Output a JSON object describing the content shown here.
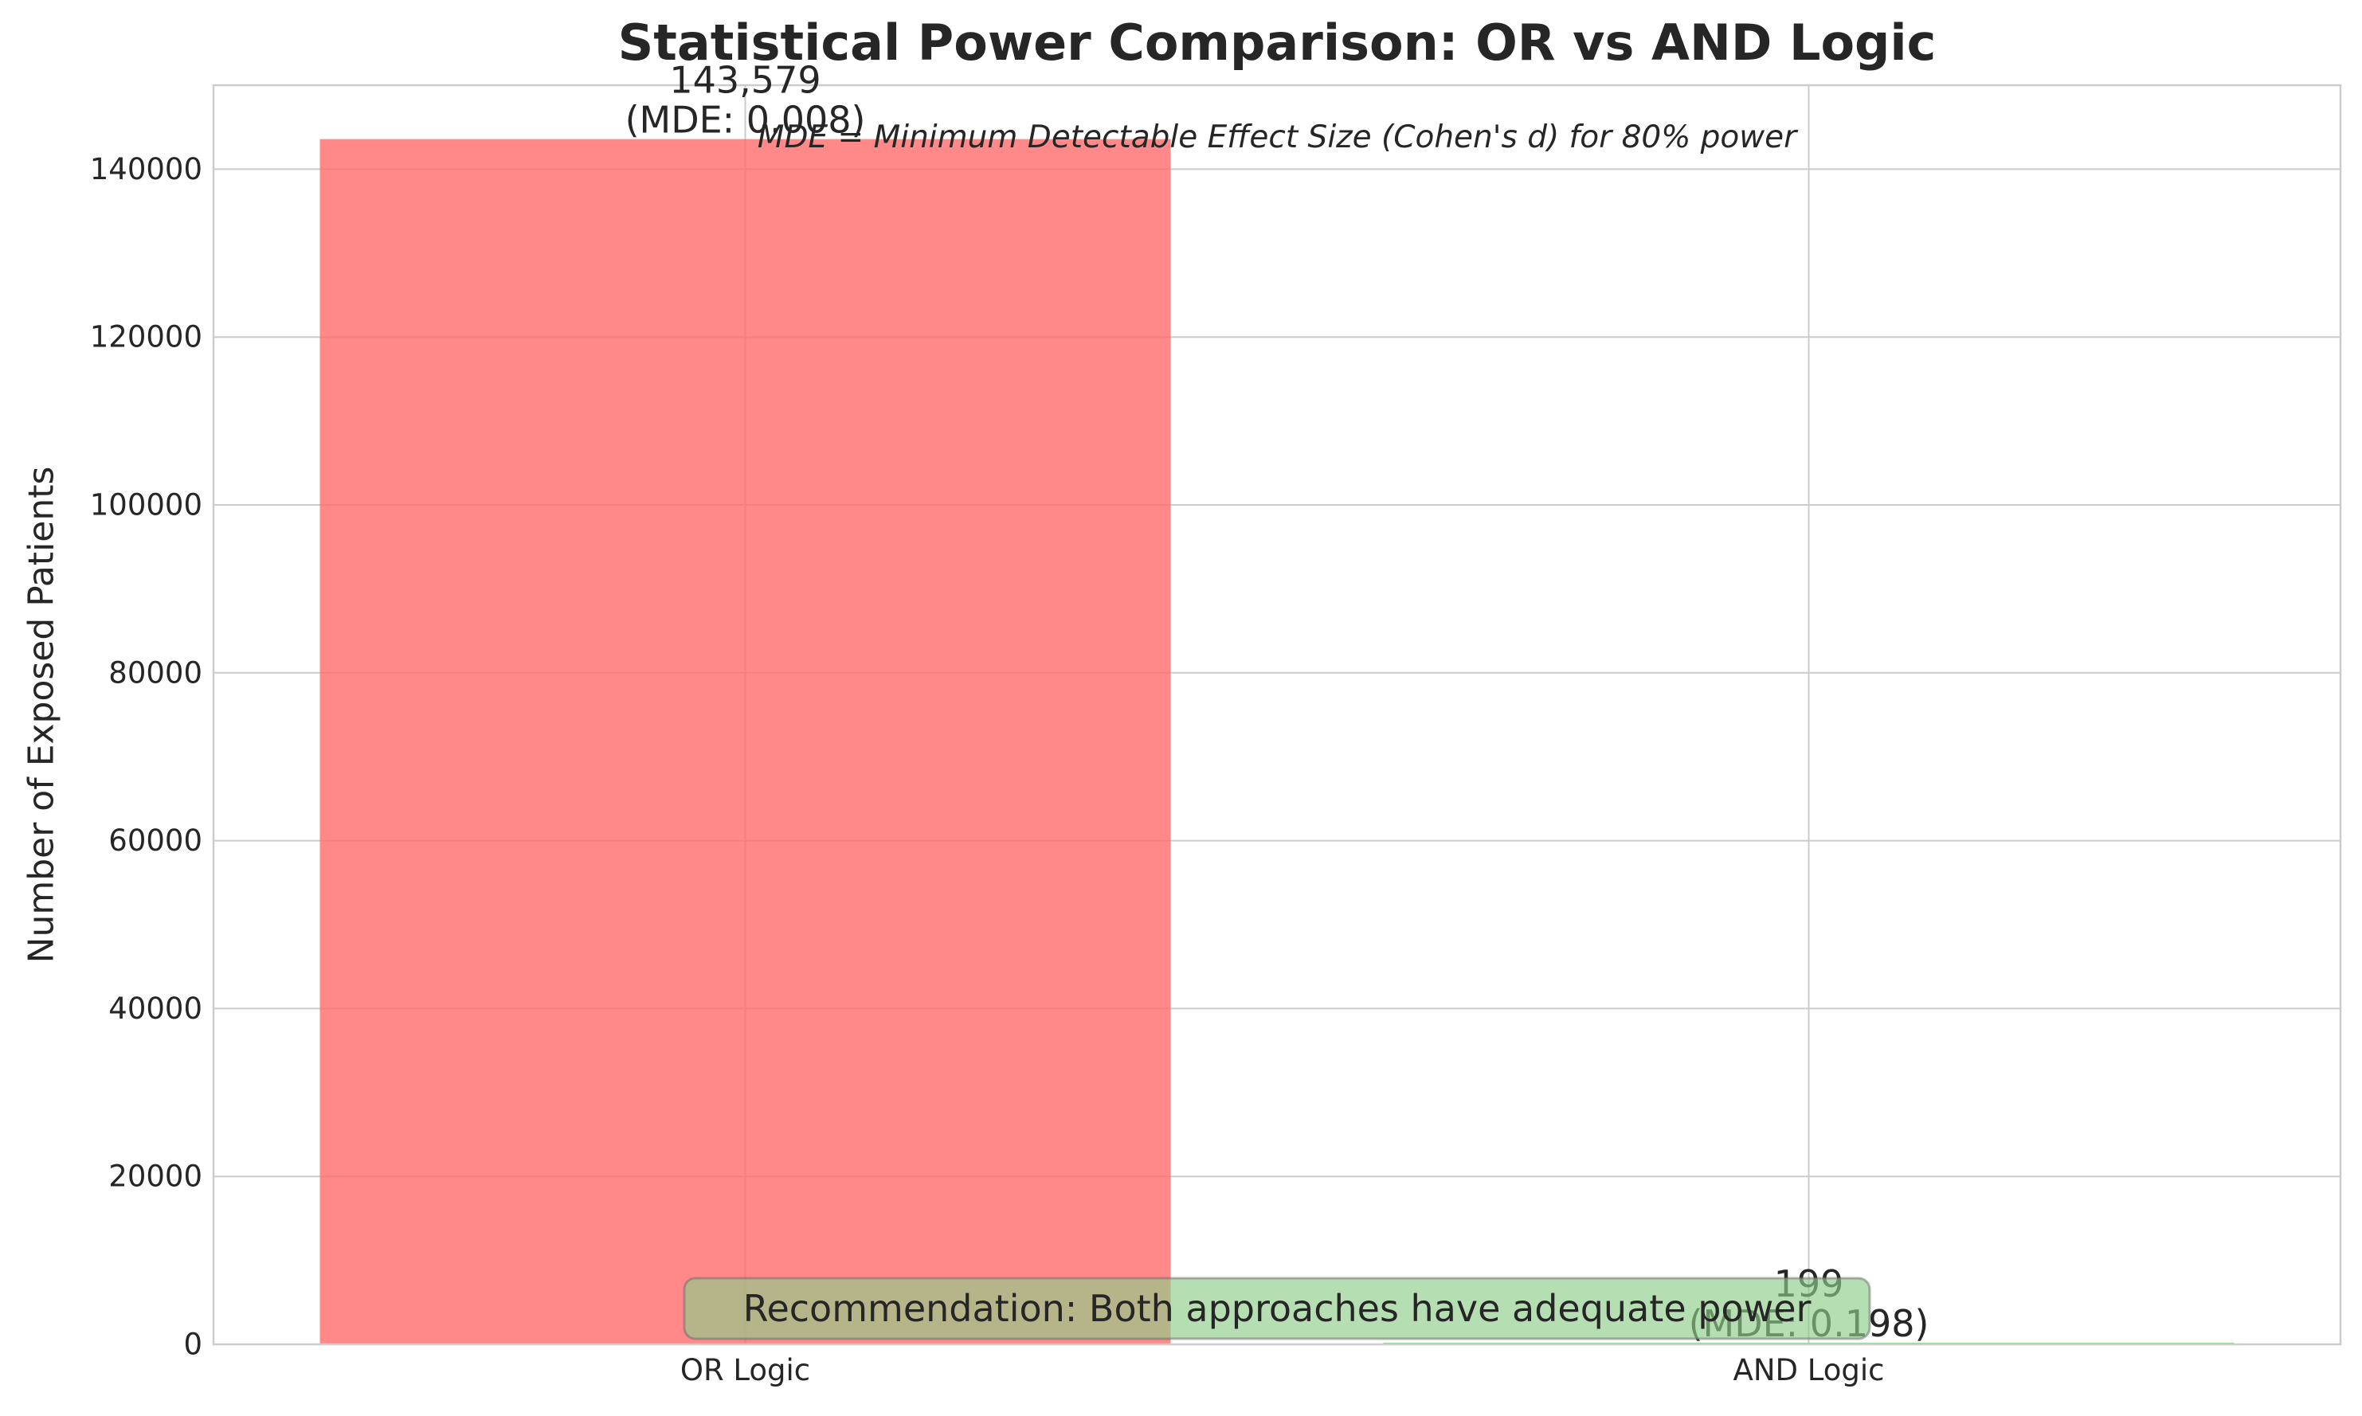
{
  "chart_data": {
    "type": "bar",
    "title": "Statistical Power Comparison: OR vs AND Logic",
    "xlabel": "",
    "ylabel": "Number of Exposed Patients",
    "categories": [
      "OR Logic",
      "AND Logic"
    ],
    "values": [
      143579,
      199
    ],
    "bar_colors": [
      "#ff6b6b",
      "#6bcf7f"
    ],
    "value_labels": [
      "143,579\n(MDE: 0.008)",
      "199\n(MDE: 0.198)"
    ],
    "ylim": [
      0,
      150000
    ],
    "yticks": [
      0,
      20000,
      40000,
      60000,
      80000,
      100000,
      120000,
      140000
    ],
    "grid": true,
    "annotations": {
      "mde_note": "MDE = Minimum Detectable Effect Size (Cohen's d) for 80% power",
      "recommendation": "Recommendation: Both approaches have adequate power"
    }
  }
}
